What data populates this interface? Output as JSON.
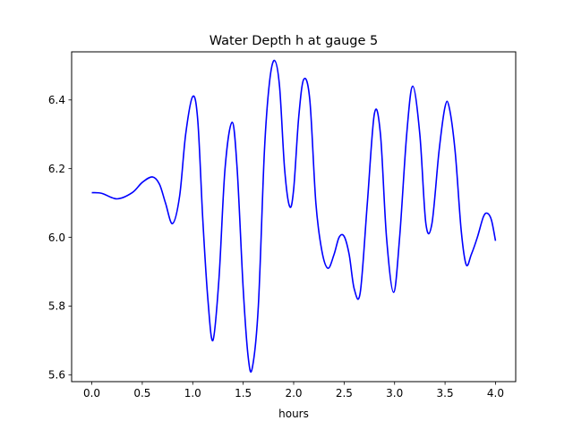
{
  "chart_data": {
    "type": "line",
    "title": "Water Depth h at gauge 5",
    "xlabel": "hours",
    "ylabel": "",
    "xlim": [
      -0.2,
      4.2
    ],
    "ylim": [
      5.58,
      6.54
    ],
    "x_ticks": [
      0.0,
      0.5,
      1.0,
      1.5,
      2.0,
      2.5,
      3.0,
      3.5,
      4.0
    ],
    "x_tick_labels": [
      "0.0",
      "0.5",
      "1.0",
      "1.5",
      "2.0",
      "2.5",
      "3.0",
      "3.5",
      "4.0"
    ],
    "y_ticks": [
      5.6,
      5.8,
      6.0,
      6.2,
      6.4
    ],
    "y_tick_labels": [
      "5.6",
      "5.8",
      "6.0",
      "6.2",
      "6.4"
    ],
    "grid": false,
    "legend": "none",
    "series": [
      {
        "color": "#0000ff",
        "x": [
          0.0,
          0.1,
          0.25,
          0.4,
          0.5,
          0.6,
          0.67,
          0.73,
          0.8,
          0.87,
          0.93,
          1.0,
          1.05,
          1.1,
          1.15,
          1.2,
          1.26,
          1.32,
          1.39,
          1.44,
          1.5,
          1.55,
          1.59,
          1.65,
          1.71,
          1.76,
          1.81,
          1.86,
          1.91,
          1.96,
          2.0,
          2.05,
          2.1,
          2.16,
          2.22,
          2.28,
          2.34,
          2.4,
          2.45,
          2.5,
          2.55,
          2.6,
          2.66,
          2.73,
          2.8,
          2.86,
          2.92,
          2.99,
          3.05,
          3.12,
          3.18,
          3.25,
          3.31,
          3.37,
          3.44,
          3.5,
          3.54,
          3.6,
          3.66,
          3.71,
          3.76,
          3.82,
          3.88,
          3.92,
          3.96,
          4.0
        ],
        "values": [
          6.13,
          6.128,
          6.112,
          6.13,
          6.16,
          6.176,
          6.155,
          6.1,
          6.04,
          6.12,
          6.3,
          6.41,
          6.34,
          6.05,
          5.82,
          5.7,
          5.88,
          6.2,
          6.335,
          6.2,
          5.85,
          5.65,
          5.62,
          5.8,
          6.25,
          6.45,
          6.515,
          6.44,
          6.2,
          6.09,
          6.14,
          6.35,
          6.46,
          6.4,
          6.1,
          5.96,
          5.91,
          5.95,
          6.0,
          6.003,
          5.95,
          5.85,
          5.84,
          6.1,
          6.36,
          6.3,
          6.0,
          5.84,
          6.0,
          6.3,
          6.44,
          6.3,
          6.04,
          6.04,
          6.25,
          6.38,
          6.38,
          6.25,
          6.02,
          5.92,
          5.95,
          6.0,
          6.06,
          6.07,
          6.05,
          5.99
        ]
      }
    ]
  }
}
